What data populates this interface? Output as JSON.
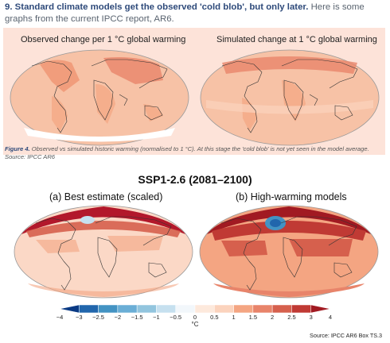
{
  "heading": {
    "number": "9.",
    "highlight": "Standard climate models get the observed 'cold blob', but only later.",
    "rest": "Here is some graphs from the current IPCC report, AR6."
  },
  "figure4": {
    "panel_left_title": "Observed change per 1 °C global warming",
    "panel_right_title": "Simulated change at 1 °C global warming",
    "caption_label": "Figure 4.",
    "caption_text": "Observed vs simulated historic warming (normalised to 1 °C). At this stage the 'cold blob' is not yet seen in the model average. Source: IPCC AR6"
  },
  "ssp": {
    "title": "SSP1-2.6 (2081–2100)",
    "panel_a": "(a) Best estimate (scaled)",
    "panel_b": "(b) High-warming models",
    "colorbar": {
      "ticks": [
        "−4",
        "−3",
        "−2.5",
        "−2",
        "−1.5",
        "−1",
        "−0.5",
        "0",
        "0.5",
        "1",
        "1.5",
        "2",
        "2.5",
        "3",
        "4"
      ],
      "unit": "°C",
      "colors": [
        "#0a3a84",
        "#2166ac",
        "#4393c3",
        "#6aaed6",
        "#92c5de",
        "#c6e0ef",
        "#f2f7fb",
        "#fde9dc",
        "#fbd3bd",
        "#f4a582",
        "#e8846a",
        "#d6604d",
        "#c03a34",
        "#a11a22"
      ]
    },
    "source": "Source: IPCC AR6 Box TS.3"
  }
}
